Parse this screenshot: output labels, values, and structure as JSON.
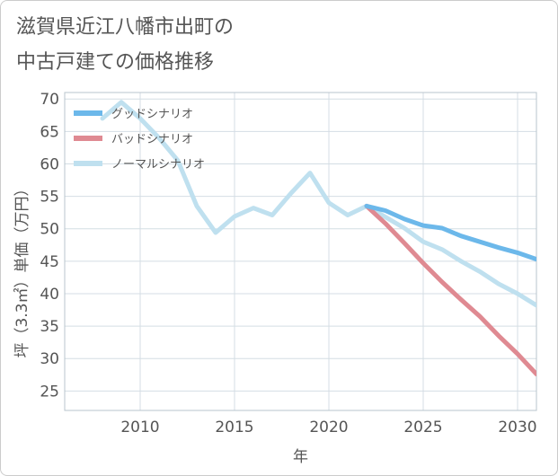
{
  "chart_data": {
    "type": "line",
    "title_line1": "滋賀県近江八幡市出町の",
    "title_line2": "中古戸建ての価格推移",
    "xlabel": "年",
    "ylabel": "坪（3.3㎡）単価（万円）",
    "xlim": [
      2006,
      2031
    ],
    "ylim": [
      22,
      71
    ],
    "x_ticks": [
      2010,
      2015,
      2020,
      2025,
      2030
    ],
    "y_ticks": [
      25,
      30,
      35,
      40,
      45,
      50,
      55,
      60,
      65,
      70
    ],
    "grid": true,
    "legend_position": "top-left",
    "series": [
      {
        "name": "グッドシナリオ",
        "color": "#6cb8ea",
        "x": [
          2022,
          2023,
          2024,
          2025,
          2026,
          2027,
          2028,
          2029,
          2030,
          2031
        ],
        "y": [
          53.5,
          52.8,
          51.5,
          50.5,
          50.1,
          48.9,
          48.0,
          47.1,
          46.3,
          45.3
        ]
      },
      {
        "name": "バッドシナリオ",
        "color": "#df8a92",
        "x": [
          2022,
          2023,
          2024,
          2025,
          2026,
          2027,
          2028,
          2029,
          2030,
          2031
        ],
        "y": [
          53.5,
          50.8,
          47.8,
          44.7,
          41.8,
          39.1,
          36.5,
          33.5,
          30.7,
          27.6
        ]
      },
      {
        "name": "ノーマルシナリオ",
        "color": "#bfe0ef",
        "x": [
          2008,
          2009,
          2010,
          2011,
          2012,
          2013,
          2014,
          2015,
          2016,
          2017,
          2018,
          2019,
          2020,
          2021,
          2022,
          2023,
          2024,
          2025,
          2026,
          2027,
          2028,
          2029,
          2030,
          2031
        ],
        "y": [
          67.0,
          69.5,
          67.0,
          64.0,
          60.5,
          53.5,
          49.4,
          51.9,
          53.2,
          52.1,
          55.5,
          58.6,
          54.0,
          52.1,
          53.5,
          51.8,
          50.1,
          48.0,
          46.8,
          45.0,
          43.4,
          41.5,
          40.0,
          38.2
        ]
      }
    ]
  }
}
